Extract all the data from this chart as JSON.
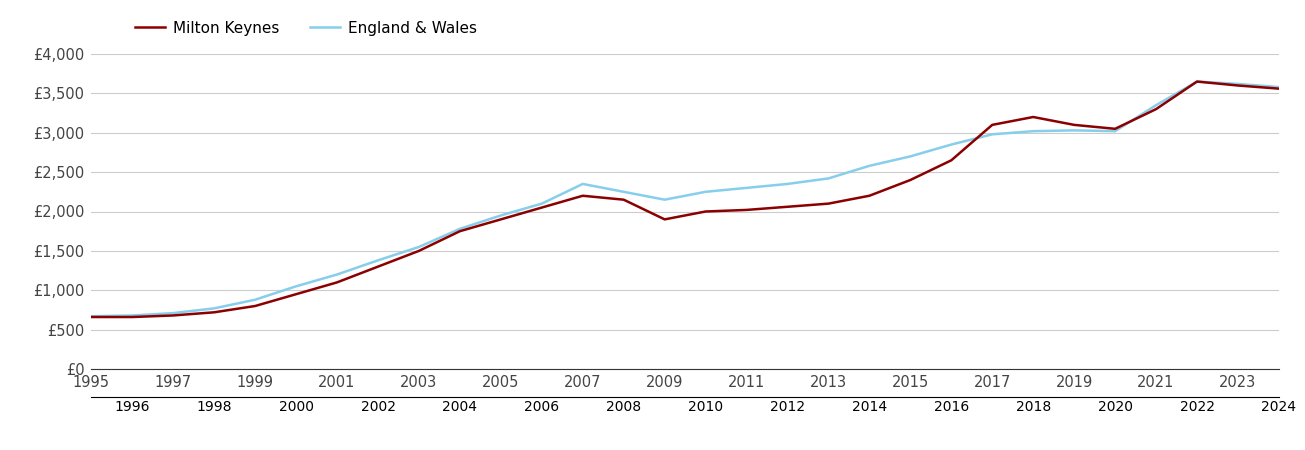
{
  "years": [
    1995,
    1996,
    1997,
    1998,
    1999,
    2000,
    2001,
    2002,
    2003,
    2004,
    2005,
    2006,
    2007,
    2008,
    2009,
    2010,
    2011,
    2012,
    2013,
    2014,
    2015,
    2016,
    2017,
    2018,
    2019,
    2020,
    2021,
    2022,
    2023,
    2024
  ],
  "milton_keynes": [
    660,
    660,
    680,
    720,
    800,
    950,
    1100,
    1300,
    1500,
    1750,
    1900,
    2050,
    2200,
    2150,
    1900,
    2000,
    2020,
    2060,
    2100,
    2200,
    2400,
    2650,
    3100,
    3200,
    3100,
    3050,
    3300,
    3650,
    3600,
    3560
  ],
  "england_wales": [
    670,
    680,
    710,
    770,
    880,
    1050,
    1200,
    1380,
    1550,
    1780,
    1950,
    2100,
    2350,
    2250,
    2150,
    2250,
    2300,
    2350,
    2420,
    2580,
    2700,
    2850,
    2980,
    3020,
    3030,
    3020,
    3350,
    3650,
    3620,
    3580
  ],
  "mk_color": "#8B0000",
  "ew_color": "#87CEEB",
  "background_color": "#ffffff",
  "grid_color": "#cccccc",
  "ylim": [
    0,
    4000
  ],
  "yticks": [
    0,
    500,
    1000,
    1500,
    2000,
    2500,
    3000,
    3500,
    4000
  ],
  "ytick_labels": [
    "£0",
    "£500",
    "£1,000",
    "£1,500",
    "£2,000",
    "£2,500",
    "£3,000",
    "£3,500",
    "£4,000"
  ],
  "legend_mk": "Milton Keynes",
  "legend_ew": "England & Wales",
  "line_width": 1.8,
  "odd_years": [
    1995,
    1997,
    1999,
    2001,
    2003,
    2005,
    2007,
    2009,
    2011,
    2013,
    2015,
    2017,
    2019,
    2021,
    2023
  ],
  "even_years": [
    1996,
    1998,
    2000,
    2002,
    2004,
    2006,
    2008,
    2010,
    2012,
    2014,
    2016,
    2018,
    2020,
    2022,
    2024
  ]
}
